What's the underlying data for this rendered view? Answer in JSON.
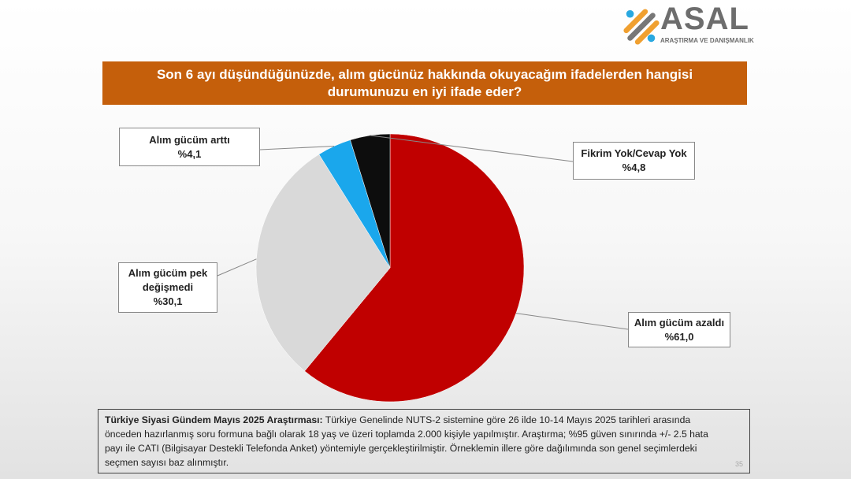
{
  "logo": {
    "name": "ASAL",
    "subtitle": "ARAŞTIRMA VE DANIŞMANLIK"
  },
  "chart_data": {
    "type": "pie",
    "title": "Son 6 ayı düşündüğünüzde, alım gücünüz hakkında okuyacağım ifadelerden hangisi durumunuzu en iyi ifade eder?",
    "start_angle": "12 o'clock, clockwise",
    "slices": [
      {
        "label": "Alım gücüm azaldı",
        "value": 61.0,
        "display": "%61,0",
        "color": "#c00000"
      },
      {
        "label": "Alım gücüm pek değişmedi",
        "value": 30.1,
        "display": "%30,1",
        "color": "#d9d9d9"
      },
      {
        "label": "Alım gücüm arttı",
        "value": 4.1,
        "display": "%4,1",
        "color": "#1aa7ec"
      },
      {
        "label": "Fikrim Yok/Cevap Yok",
        "value": 4.8,
        "display": "%4,8",
        "color": "#0d0d0d"
      }
    ]
  },
  "footer": {
    "bold": "Türkiye Siyasi Gündem Mayıs 2025 Araştırması:",
    "text": " Türkiye Genelinde NUTS-2 sistemine göre 26 ilde 10-14 Mayıs 2025 tarihleri arasında önceden hazırlanmış soru formuna bağlı olarak 18 yaş ve üzeri toplamda 2.000 kişiyle yapılmıştır. Araştırma; %95 güven sınırında +/- 2.5 hata payı ile CATI (Bilgisayar Destekli Telefonda Anket) yöntemiyle gerçekleştirilmiştir. Örneklemin illere göre dağılımında son genel seçimlerdeki seçmen sayısı baz alınmıştır.",
    "page": "35"
  }
}
